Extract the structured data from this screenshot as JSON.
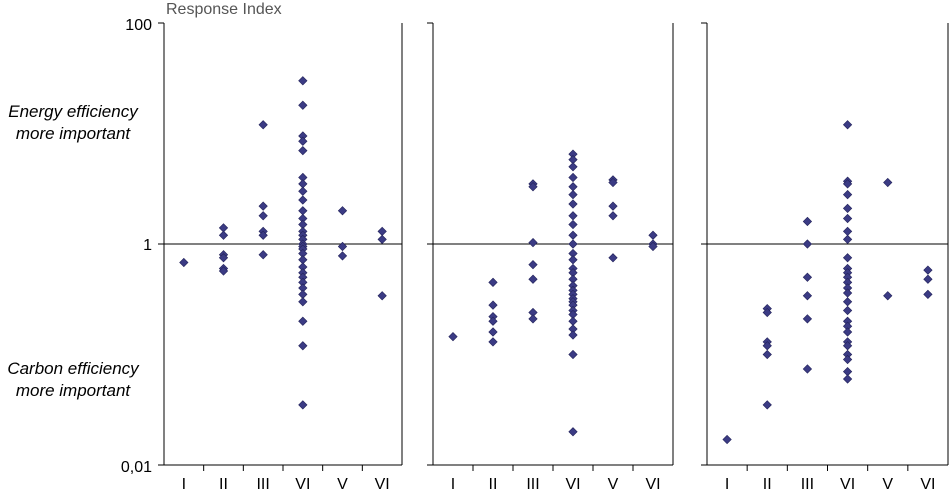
{
  "chart_data": {
    "type": "scatter",
    "ylabel": "Response Index",
    "yscale": "log",
    "ylim": [
      0.01,
      100
    ],
    "yticks": [
      {
        "value": 100,
        "label": "100"
      },
      {
        "value": 1,
        "label": "1"
      },
      {
        "value": 0.01,
        "label": "0,01"
      }
    ],
    "reference_line": 1,
    "annotations": {
      "upper": [
        "Energy efficiency",
        "more important"
      ],
      "lower": [
        "Carbon efficiency",
        "more important"
      ]
    },
    "colors": {
      "marker": "#3b3b84"
    },
    "panels": [
      {
        "categories": [
          "I",
          "II",
          "III",
          "VI",
          "V",
          "VI"
        ],
        "series": [
          [
            0.68
          ],
          [
            1.4,
            1.2,
            0.8,
            0.75,
            0.6,
            0.57
          ],
          [
            12,
            2.2,
            1.8,
            1.3,
            1.2,
            0.8
          ],
          [
            30,
            18,
            9.5,
            8.5,
            7,
            4,
            3.5,
            3,
            2.5,
            2,
            1.7,
            1.5,
            1.3,
            1.2,
            1.1,
            1.0,
            0.95,
            0.9,
            0.82,
            0.72,
            0.62,
            0.55,
            0.5,
            0.45,
            0.4,
            0.35,
            0.3,
            0.2,
            0.12,
            0.035
          ],
          [
            2,
            0.95,
            0.78
          ],
          [
            1.3,
            1.1,
            0.34
          ]
        ]
      },
      {
        "categories": [
          "I",
          "II",
          "III",
          "VI",
          "V",
          "VI"
        ],
        "series": [
          [
            0.145
          ],
          [
            0.45,
            0.28,
            0.22,
            0.2,
            0.16,
            0.13
          ],
          [
            3.5,
            3.3,
            1.03,
            0.65,
            0.48,
            0.24,
            0.21
          ],
          [
            6.5,
            5.8,
            5,
            4,
            3.3,
            2.8,
            2.3,
            1.8,
            1.5,
            1.2,
            1.0,
            0.82,
            0.72,
            0.6,
            0.55,
            0.48,
            0.42,
            0.38,
            0.35,
            0.32,
            0.3,
            0.28,
            0.25,
            0.23,
            0.2,
            0.17,
            0.15,
            0.1,
            0.02
          ],
          [
            3.8,
            3.6,
            2.2,
            1.8,
            0.75
          ],
          [
            1.2,
            1.0,
            0.95
          ]
        ]
      },
      {
        "categories": [
          "I",
          "II",
          "III",
          "VI",
          "V",
          "VI"
        ],
        "series": [
          [
            0.017
          ],
          [
            0.26,
            0.24,
            0.13,
            0.12,
            0.1,
            0.035
          ],
          [
            1.6,
            1.0,
            0.5,
            0.34,
            0.21,
            0.074
          ],
          [
            12,
            3.7,
            3.5,
            2.8,
            2.1,
            1.7,
            1.3,
            1.1,
            0.75,
            0.6,
            0.55,
            0.5,
            0.45,
            0.4,
            0.36,
            0.3,
            0.25,
            0.2,
            0.18,
            0.16,
            0.13,
            0.12,
            0.1,
            0.09,
            0.07,
            0.06
          ],
          [
            3.6,
            0.34
          ],
          [
            0.58,
            0.48,
            0.35
          ]
        ]
      }
    ]
  }
}
